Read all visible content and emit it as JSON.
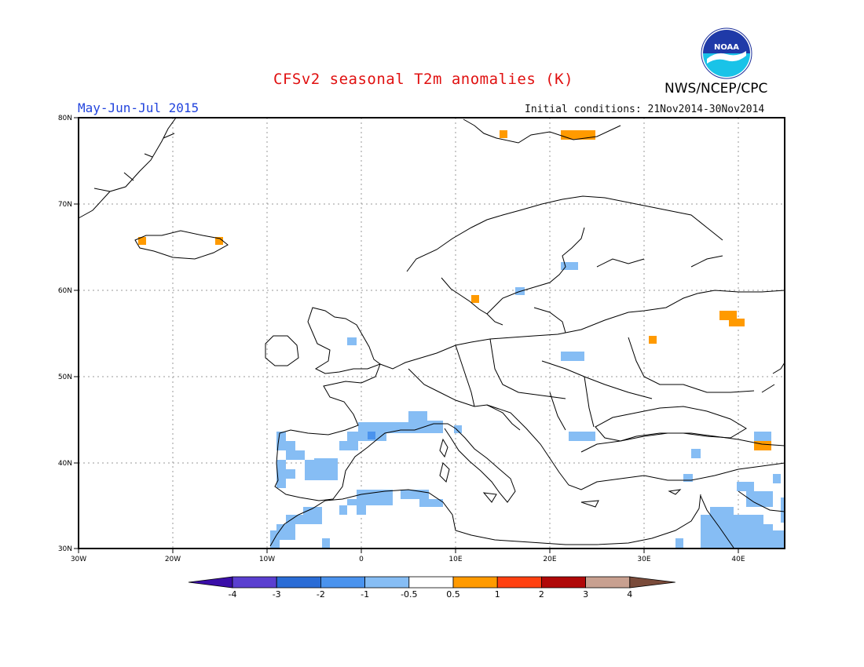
{
  "title": "CFSv2 seasonal T2m anomalies (K)",
  "period": "May-Jun-Jul 2015",
  "initial_conditions": "Initial conditions: 21Nov2014-30Nov2014",
  "agency": "NWS/NCEP/CPC",
  "logo": {
    "text": "NOAA",
    "icon": "noaa-logo"
  },
  "axes": {
    "lat_labels": [
      "80N",
      "70N",
      "60N",
      "50N",
      "40N",
      "30N"
    ],
    "lon_labels": [
      "30W",
      "20W",
      "10W",
      "0",
      "10E",
      "20E",
      "30E",
      "40E"
    ]
  },
  "colorbar": {
    "labels": [
      "-4",
      "-3",
      "-2",
      "-1",
      "-0.5",
      "0.5",
      "1",
      "2",
      "3",
      "4"
    ],
    "colors": [
      "#3a0ea8",
      "#5a3fd0",
      "#2a6cd6",
      "#4a93ee",
      "#86bdf4",
      "#ffffff",
      "#ff9a00",
      "#ff4010",
      "#b00808",
      "#c8a090",
      "#7a4b3a"
    ]
  },
  "colors": {
    "title": "#e01010",
    "period": "#2244dd",
    "cool_anomaly": "#86bdf4",
    "warm_anomaly": "#ff9a00"
  }
}
